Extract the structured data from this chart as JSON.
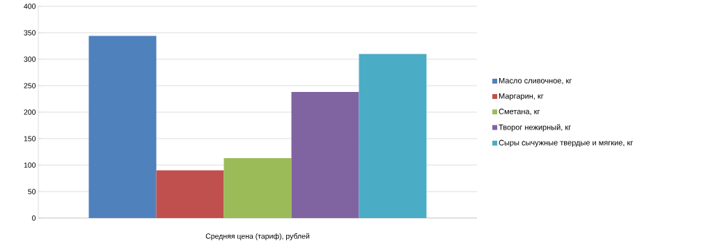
{
  "chart_data": {
    "type": "bar",
    "categories": [
      "Средняя цена (тариф),   рублей"
    ],
    "series": [
      {
        "name": "Масло сливочное, кг",
        "color": "#4f81bd",
        "values": [
          344
        ]
      },
      {
        "name": "Маргарин, кг",
        "color": "#c0504d",
        "values": [
          90
        ]
      },
      {
        "name": "Сметана, кг",
        "color": "#9bbb59",
        "values": [
          113
        ]
      },
      {
        "name": "Творог нежирный, кг",
        "color": "#8064a2",
        "values": [
          238
        ]
      },
      {
        "name": "Сыры сычужные твердые и мягкие, кг",
        "color": "#4bacc6",
        "values": [
          310
        ]
      }
    ],
    "ylim": [
      0,
      400
    ],
    "yticks": [
      0,
      50,
      100,
      150,
      200,
      250,
      300,
      350,
      400
    ],
    "grid": "y",
    "legend": "right"
  }
}
